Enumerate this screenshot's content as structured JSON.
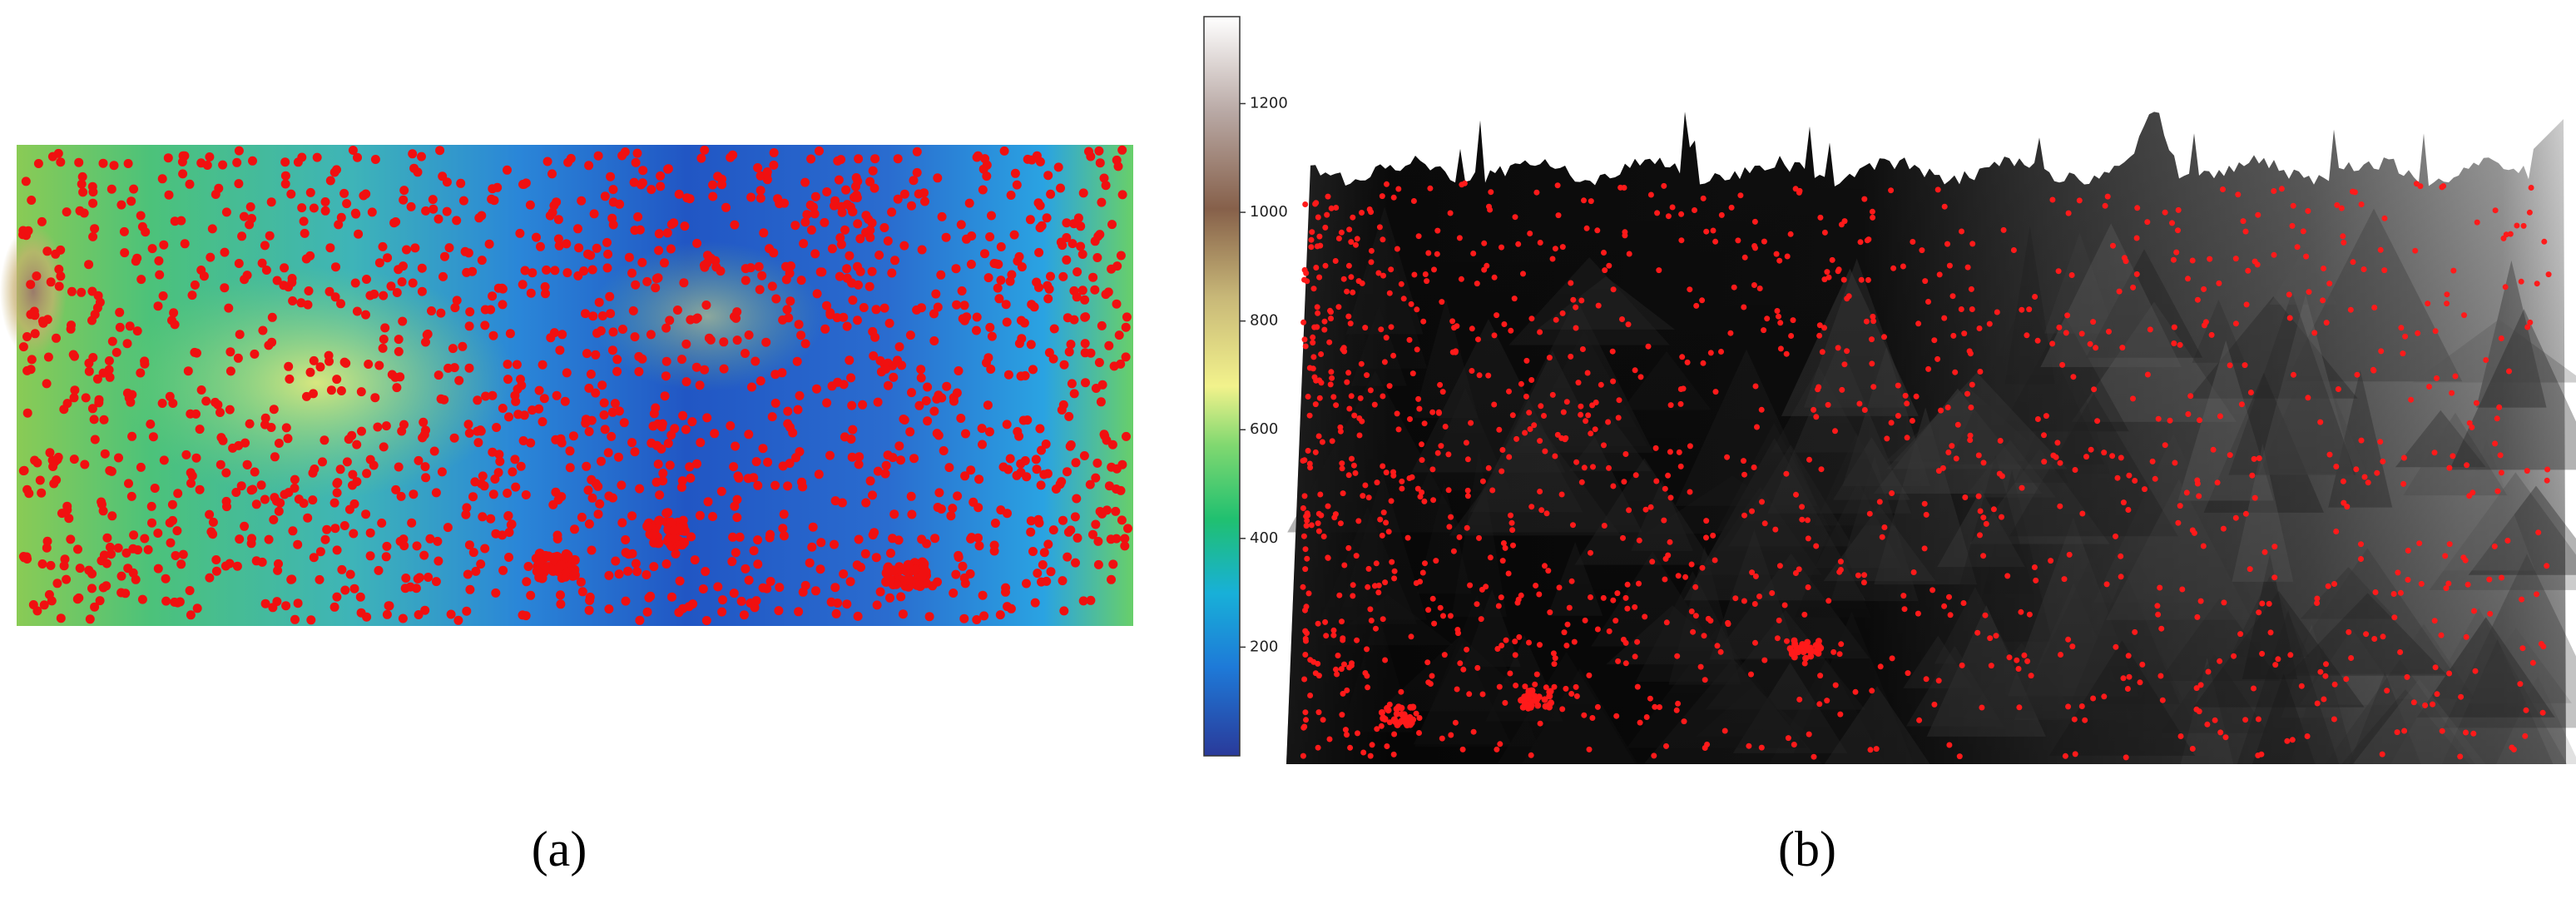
{
  "panels": [
    {
      "caption": "(a)"
    },
    {
      "caption": "(b)"
    }
  ],
  "colorbar": {
    "clim": [
      0,
      1360
    ],
    "ticks": [
      200,
      400,
      600,
      800,
      1000,
      1200
    ]
  }
}
